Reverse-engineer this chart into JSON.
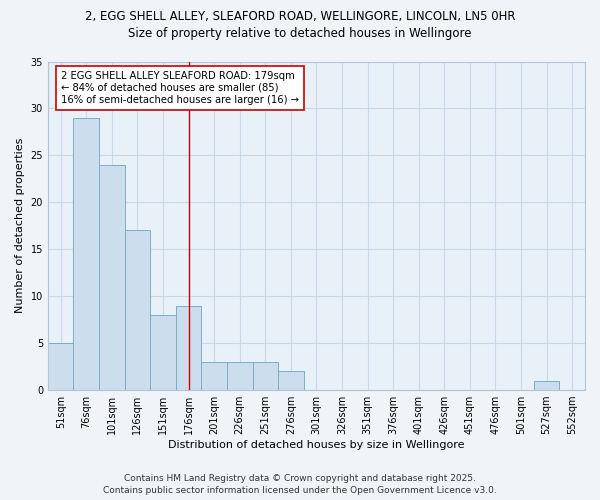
{
  "title_line1": "2, EGG SHELL ALLEY, SLEAFORD ROAD, WELLINGORE, LINCOLN, LN5 0HR",
  "title_line2": "Size of property relative to detached houses in Wellingore",
  "xlabel": "Distribution of detached houses by size in Wellingore",
  "ylabel": "Number of detached properties",
  "categories": [
    "51sqm",
    "76sqm",
    "101sqm",
    "126sqm",
    "151sqm",
    "176sqm",
    "201sqm",
    "226sqm",
    "251sqm",
    "276sqm",
    "301sqm",
    "326sqm",
    "351sqm",
    "376sqm",
    "401sqm",
    "426sqm",
    "451sqm",
    "476sqm",
    "501sqm",
    "527sqm",
    "552sqm"
  ],
  "values": [
    5,
    29,
    24,
    17,
    8,
    9,
    3,
    3,
    3,
    2,
    0,
    0,
    0,
    0,
    0,
    0,
    0,
    0,
    0,
    1,
    0
  ],
  "bar_color": "#ccdded",
  "bar_edge_color": "#7aaec8",
  "highlight_bar_index": 5,
  "highlight_line_color": "#cc0000",
  "annotation_text": "2 EGG SHELL ALLEY SLEAFORD ROAD: 179sqm\n← 84% of detached houses are smaller (85)\n16% of semi-detached houses are larger (16) →",
  "annotation_box_color": "#ffffff",
  "annotation_box_edge_color": "#cc0000",
  "ylim": [
    0,
    35
  ],
  "yticks": [
    0,
    5,
    10,
    15,
    20,
    25,
    30,
    35
  ],
  "footer_line1": "Contains HM Land Registry data © Crown copyright and database right 2025.",
  "footer_line2": "Contains public sector information licensed under the Open Government Licence v3.0.",
  "bg_color": "#f0f4f8",
  "plot_bg_color": "#e8f0f8",
  "grid_color": "#c8d8e8",
  "title_fontsize": 8.5,
  "title2_fontsize": 8.5,
  "axis_label_fontsize": 8,
  "tick_fontsize": 7,
  "annotation_fontsize": 7.2,
  "footer_fontsize": 6.5
}
